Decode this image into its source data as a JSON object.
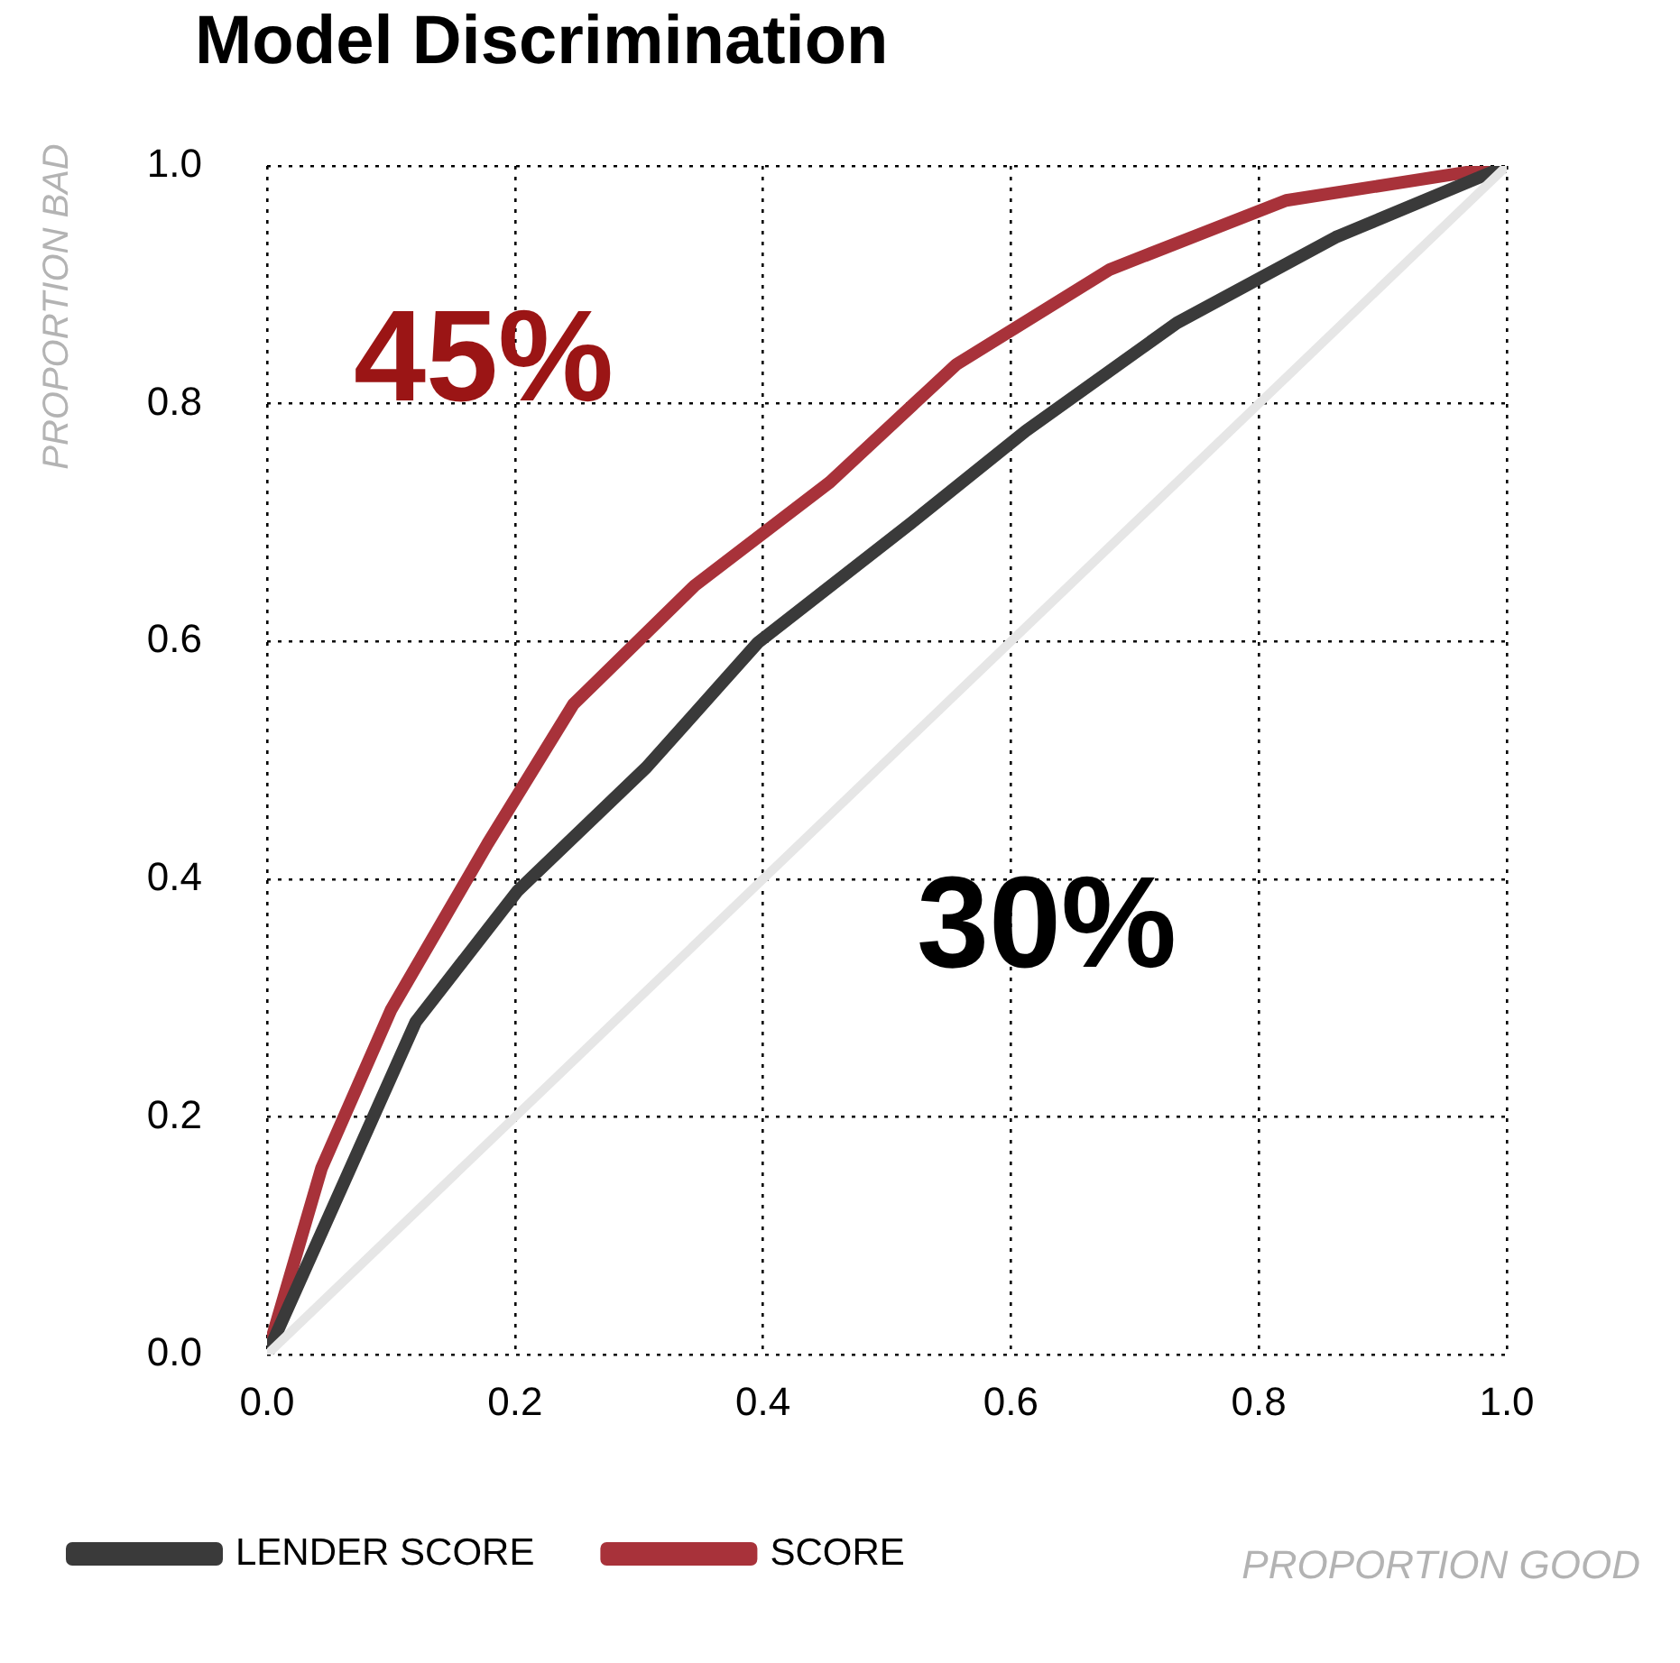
{
  "chart_data": {
    "type": "line",
    "title": "Model Discrimination",
    "xlabel": "PROPORTION GOOD",
    "ylabel": "PROPORTION BAD",
    "series": [
      {
        "name": "SCORE",
        "color": "#a8323a",
        "x": [
          0,
          0.044,
          0.1,
          0.178,
          0.247,
          0.345,
          0.454,
          0.556,
          0.68,
          0.822,
          1
        ],
        "values": [
          0,
          0.157,
          0.29,
          0.43,
          0.547,
          0.647,
          0.734,
          0.833,
          0.913,
          0.971,
          1
        ]
      },
      {
        "name": "LENDER SCORE",
        "color": "#3a3a3a",
        "x": [
          0,
          0.12,
          0.202,
          0.306,
          0.396,
          0.52,
          0.612,
          0.734,
          0.862,
          1
        ],
        "values": [
          0,
          0.28,
          0.39,
          0.494,
          0.599,
          0.7,
          0.777,
          0.868,
          0.94,
          1
        ]
      },
      {
        "color": "#e6e6e6",
        "x": [
          0,
          1
        ],
        "values": [
          0,
          1
        ]
      }
    ],
    "xlim": [
      0,
      1
    ],
    "ylim": [
      0,
      1
    ],
    "xticks": [
      {
        "value": 0,
        "label": "0.0"
      },
      {
        "value": 0.2,
        "label": "0.2"
      },
      {
        "value": 0.4,
        "label": "0.4"
      },
      {
        "value": 0.6,
        "label": "0.6"
      },
      {
        "value": 0.8,
        "label": "0.8"
      },
      {
        "value": 1,
        "label": "1.0"
      }
    ],
    "yticks": [
      {
        "value": 0,
        "label": "0.0"
      },
      {
        "value": 0.2,
        "label": "0.2"
      },
      {
        "value": 0.4,
        "label": "0.4"
      },
      {
        "value": 0.6,
        "label": "0.6"
      },
      {
        "value": 0.8,
        "label": "0.8"
      },
      {
        "value": 1,
        "label": "1.0"
      }
    ],
    "grid": true,
    "legend": "bottom",
    "marker": "none",
    "line_style": "solid",
    "annotations": [
      "45%",
      "30%"
    ]
  }
}
